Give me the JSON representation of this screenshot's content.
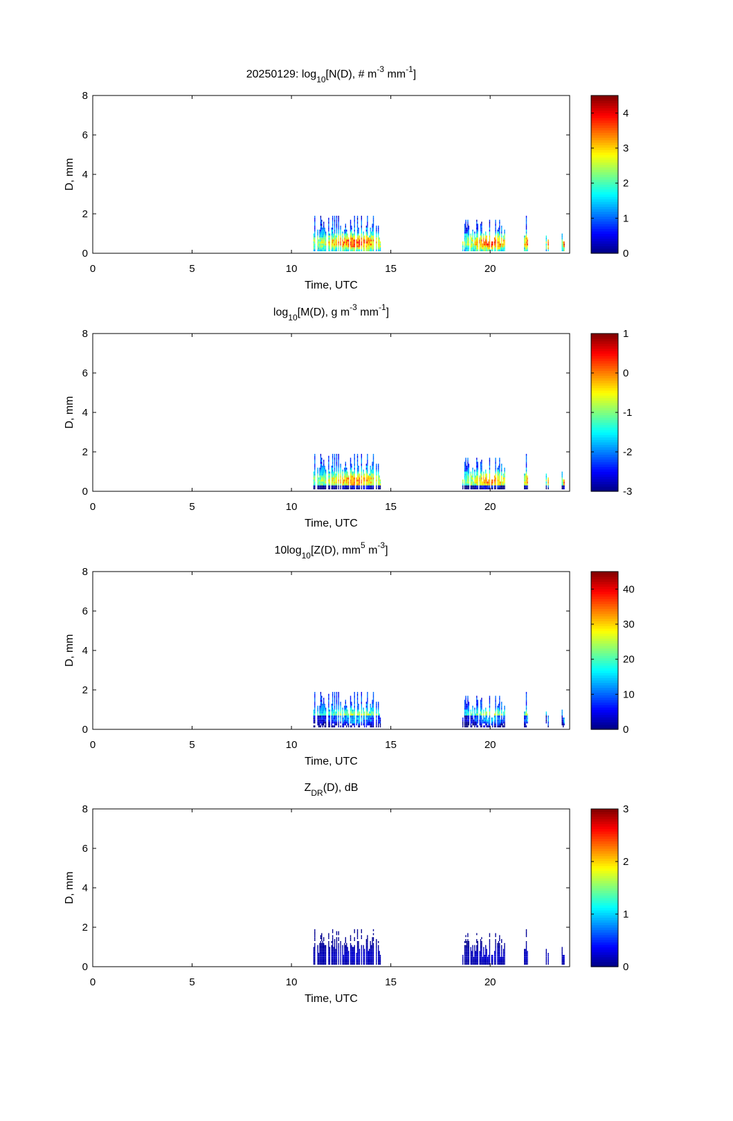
{
  "figure": {
    "date": "20250129"
  },
  "chart_data": [
    {
      "type": "heatmap",
      "title_parts": [
        "20250129: log",
        "10",
        "[N(D), # m",
        "-3",
        " mm",
        "-1",
        "]"
      ],
      "xlabel": "Time, UTC",
      "ylabel": "D, mm",
      "xlim": [
        0,
        24
      ],
      "ylim": [
        0,
        8
      ],
      "xticks": [
        0,
        5,
        10,
        15,
        20
      ],
      "yticks": [
        0,
        2,
        4,
        6,
        8
      ],
      "colormap": "jet",
      "clim": [
        0,
        4.5
      ],
      "colorbar_ticks": [
        0,
        1,
        2,
        3,
        4
      ],
      "grid": false,
      "value_scale": 1.0,
      "bias": 0.0
    },
    {
      "type": "heatmap",
      "title_parts": [
        "log",
        "10",
        "[M(D), g m",
        "-3",
        " mm",
        "-1",
        "]"
      ],
      "xlabel": "Time, UTC",
      "ylabel": "D, mm",
      "xlim": [
        0,
        24
      ],
      "ylim": [
        0,
        8
      ],
      "xticks": [
        0,
        5,
        10,
        15,
        20
      ],
      "yticks": [
        0,
        2,
        4,
        6,
        8
      ],
      "colormap": "jet",
      "clim": [
        -3,
        1
      ],
      "colorbar_ticks": [
        -3,
        -2,
        -1,
        0,
        1
      ],
      "grid": false,
      "value_scale": 1.0,
      "bias": 0.0
    },
    {
      "type": "heatmap",
      "title_parts": [
        "10log",
        "10",
        "[Z(D),  mm",
        "5",
        " m",
        "-3",
        "]"
      ],
      "xlabel": "Time, UTC",
      "ylabel": "D, mm",
      "xlim": [
        0,
        24
      ],
      "ylim": [
        0,
        8
      ],
      "xticks": [
        0,
        5,
        10,
        15,
        20
      ],
      "yticks": [
        0,
        2,
        4,
        6,
        8
      ],
      "colormap": "jet",
      "clim": [
        0,
        45
      ],
      "colorbar_ticks": [
        0,
        10,
        20,
        30,
        40
      ],
      "grid": false,
      "value_scale": 1.0,
      "bias": 0.0
    },
    {
      "type": "heatmap",
      "title_parts": [
        "Z",
        "DR",
        "(D), dB",
        "",
        "",
        "",
        ""
      ],
      "xlabel": "Time, UTC",
      "ylabel": "D, mm",
      "xlim": [
        0,
        24
      ],
      "ylim": [
        0,
        8
      ],
      "xticks": [
        0,
        5,
        10,
        15,
        20
      ],
      "yticks": [
        0,
        2,
        4,
        6,
        8
      ],
      "colormap": "jet",
      "clim": [
        0,
        3
      ],
      "colorbar_ticks": [
        0,
        1,
        2,
        3
      ],
      "grid": false,
      "value_scale": 1.0,
      "bias": 0.0
    }
  ],
  "precip_events": [
    {
      "t_start": 11.1,
      "t_end": 14.5,
      "peak_t": 13.2,
      "max_D": 1.9
    },
    {
      "t_start": 18.6,
      "t_end": 20.8,
      "peak_t": 20.0,
      "max_D": 1.7
    },
    {
      "t_start": 21.7,
      "t_end": 22.0,
      "peak_t": 21.85,
      "max_D": 1.9
    },
    {
      "t_start": 22.8,
      "t_end": 22.95,
      "peak_t": 22.9,
      "max_D": 0.8
    },
    {
      "t_start": 23.6,
      "t_end": 23.75,
      "peak_t": 23.7,
      "max_D": 0.9
    }
  ]
}
